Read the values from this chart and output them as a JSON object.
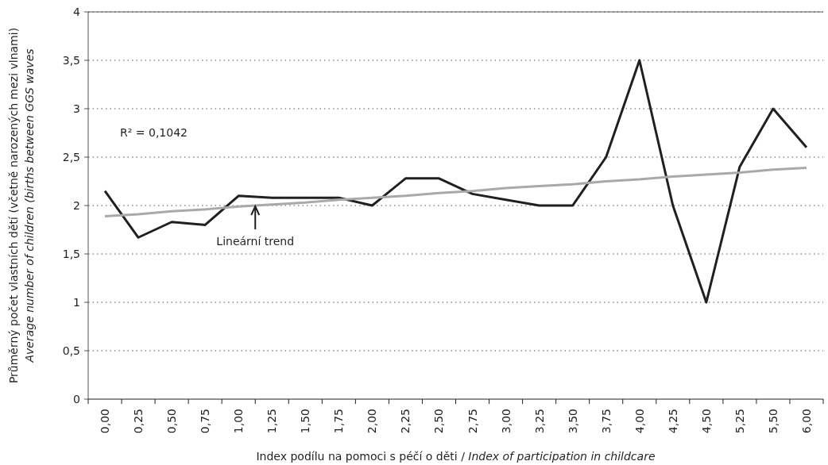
{
  "chart_data": {
    "type": "line",
    "xlabel": "Index podílu na pomoci s péčí o děti / Index of participation in childcare",
    "ylabel": "Průměrný počet vlastních dětí (včetně narozených mezi vlnami)\nAverage number of children (births between GGS waves",
    "categories": [
      "0,00",
      "0,25",
      "0,50",
      "0,75",
      "1,00",
      "1,25",
      "1,50",
      "1,75",
      "2,00",
      "2,25",
      "2,50",
      "2,75",
      "3,00",
      "3,25",
      "3,50",
      "3,75",
      "4,00",
      "4,25",
      "4,50",
      "5,25",
      "5,50",
      "6,00"
    ],
    "series": [
      {
        "color": "#231f20",
        "values": [
          2.15,
          1.67,
          1.83,
          1.8,
          2.1,
          2.08,
          2.08,
          2.08,
          2.0,
          2.28,
          2.28,
          2.12,
          2.06,
          2.0,
          2.0,
          2.5,
          3.5,
          2.0,
          1.0,
          2.4,
          3.0,
          2.6
        ]
      },
      {
        "type": "line",
        "color": "#a7a9ac",
        "values": [
          1.89,
          1.91,
          1.94,
          1.96,
          1.99,
          2.01,
          2.03,
          2.06,
          2.08,
          2.1,
          2.13,
          2.15,
          2.18,
          2.2,
          2.22,
          2.25,
          2.27,
          2.3,
          2.32,
          2.34,
          2.37,
          2.39
        ]
      }
    ],
    "ylim": [
      0,
      4
    ],
    "yticks": [
      0,
      {
        "value": 0.5,
        "label": "0,5"
      },
      1,
      {
        "value": 1.5,
        "label": "1,5"
      },
      2,
      {
        "value": 2.5,
        "label": "2,5"
      },
      3,
      {
        "value": 3.5,
        "label": "3,5"
      },
      4
    ],
    "grid": "y",
    "marker": "none",
    "line_style": "solid",
    "annotations": [
      "R² = 0,1042",
      "Lineární trend"
    ]
  }
}
